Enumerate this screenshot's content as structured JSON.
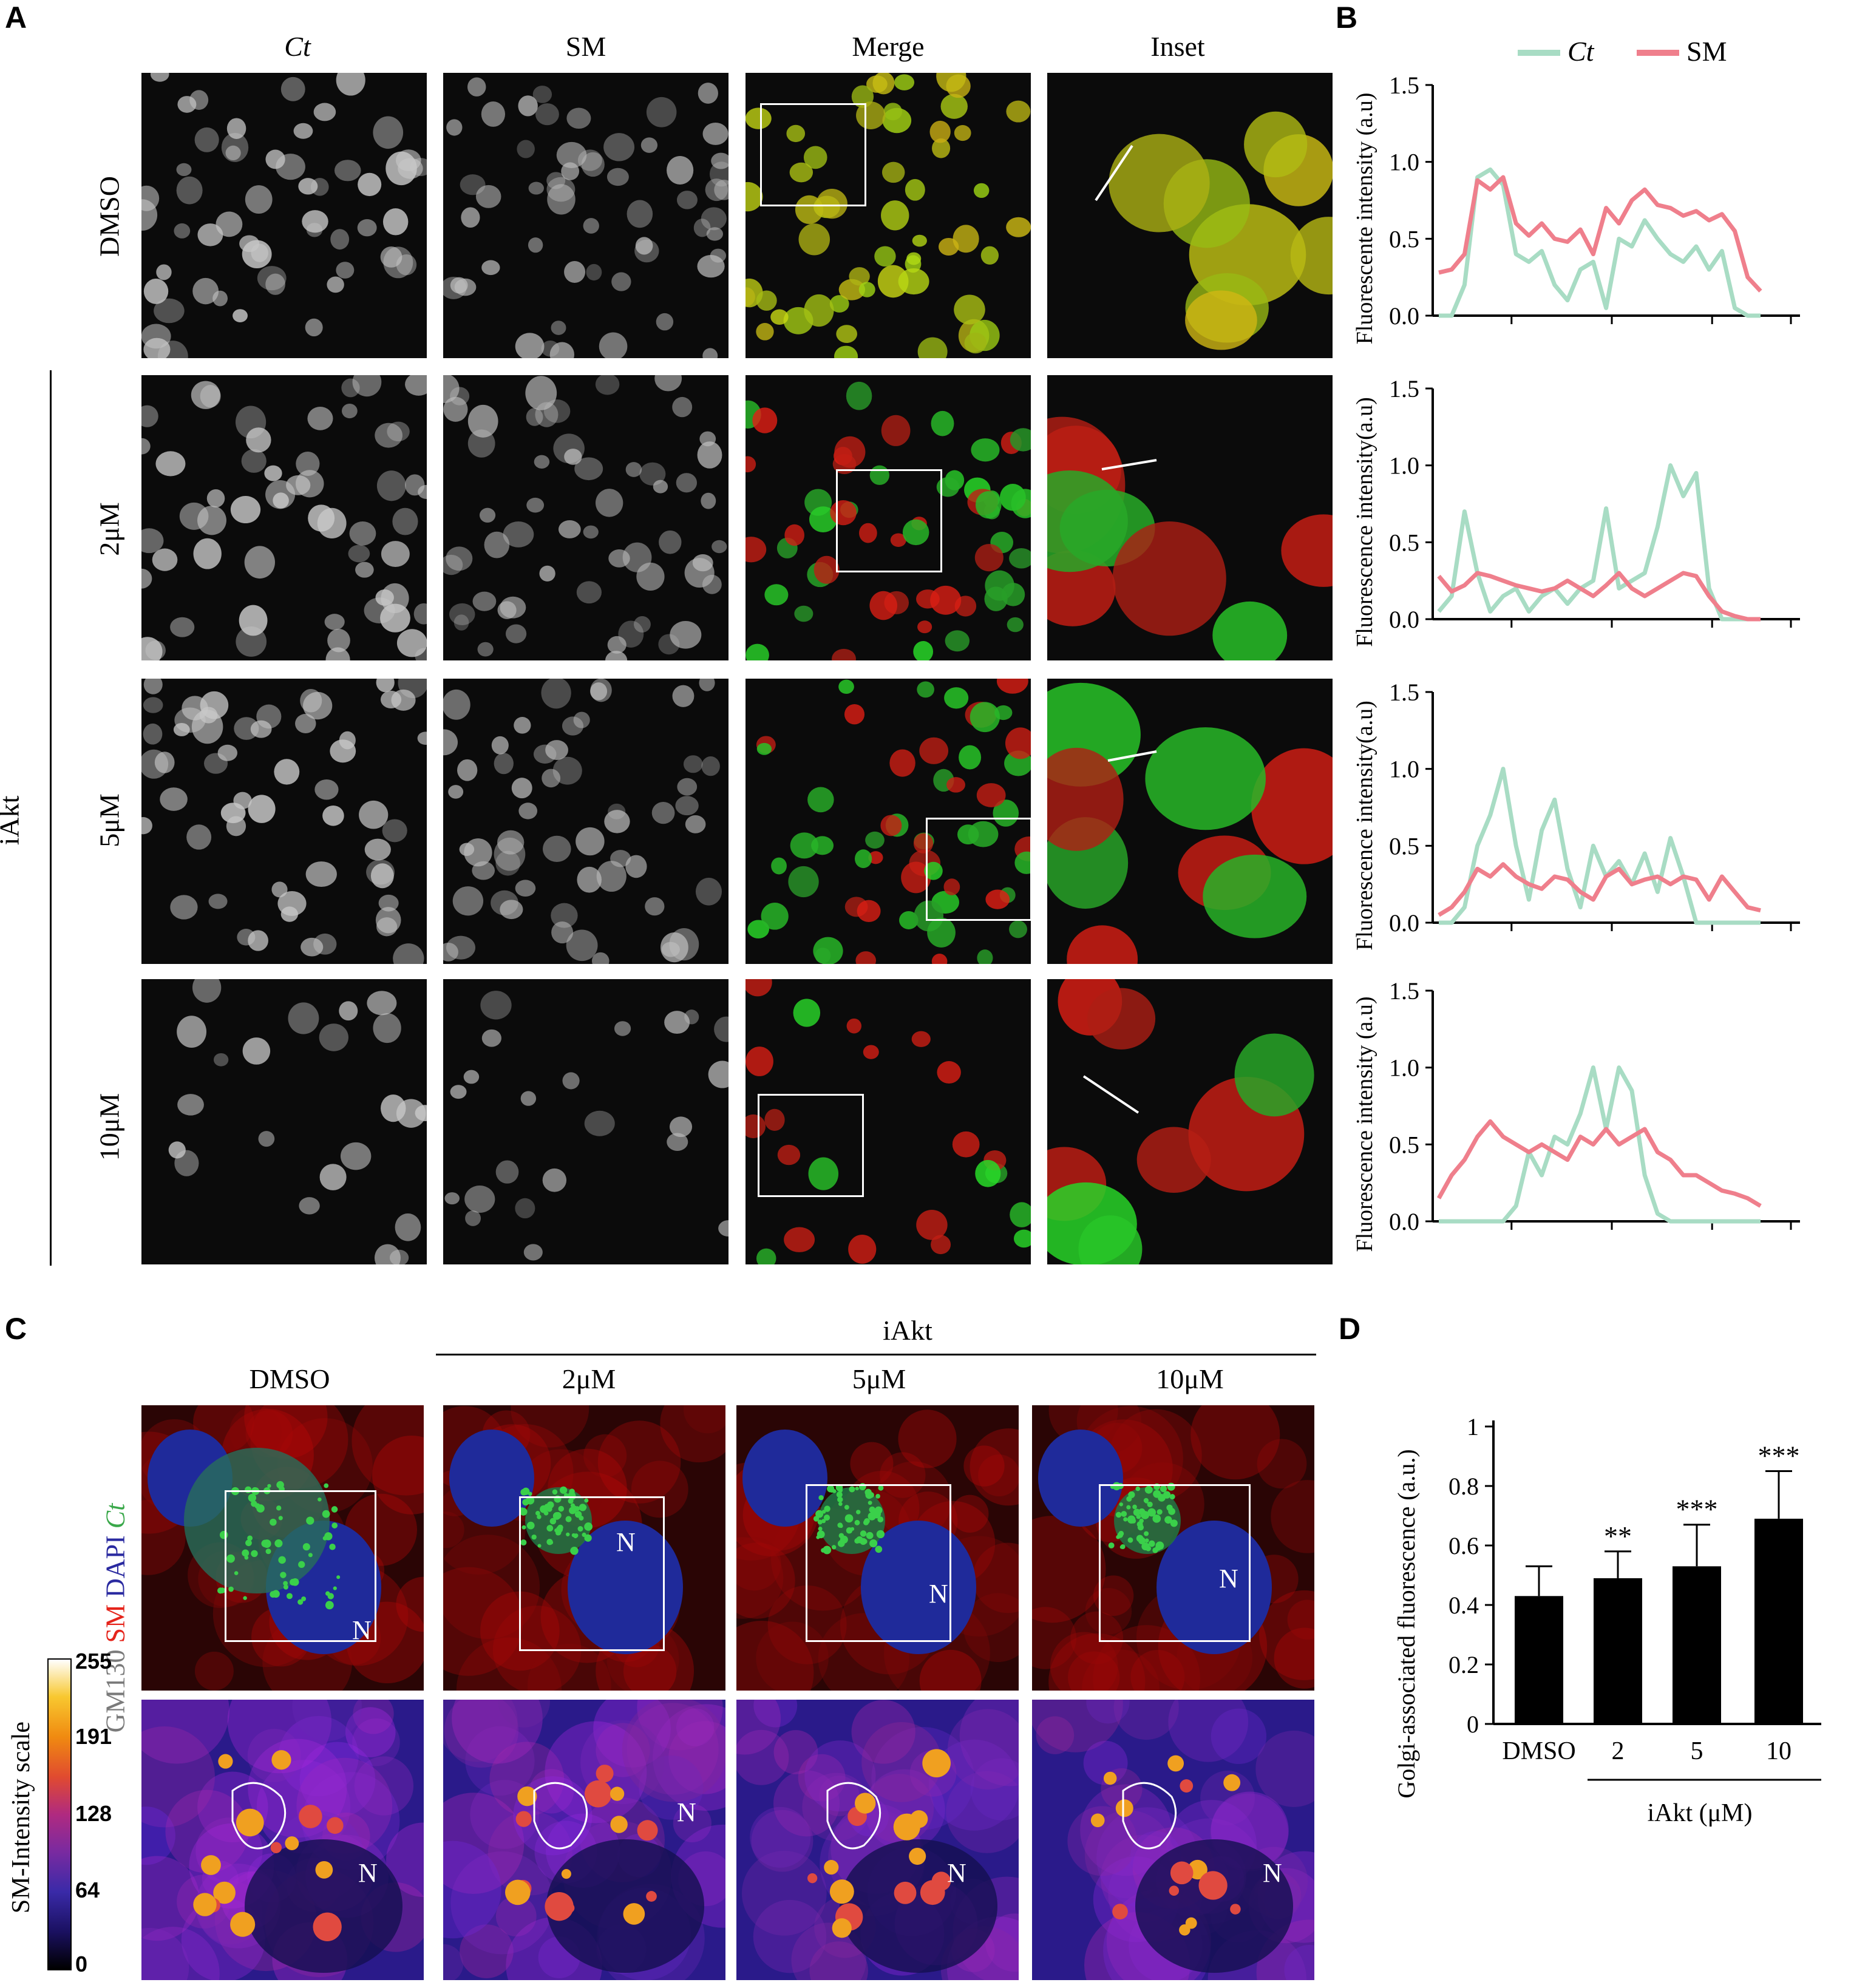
{
  "panelA": {
    "letter": "A",
    "columns": [
      "Ct",
      "SM",
      "Merge",
      "Inset"
    ],
    "rows": [
      "DMSO",
      "2μM",
      "5μM",
      "10μM"
    ],
    "group_label": "iAkt"
  },
  "panelB": {
    "letter": "B",
    "legend": [
      {
        "name": "Ct",
        "color": "#a8dcc4"
      },
      {
        "name": "SM",
        "color": "#ef7f8c"
      }
    ],
    "ylabels": [
      "Fluorescente intensity (a.u)",
      "Fluorescence intensity(a.u)",
      "Fluorescence intensity(a.u)",
      "Fluorescence intensity (a.u)"
    ],
    "yticks": [
      "0.0",
      "0.5",
      "1.0",
      "1.5"
    ]
  },
  "chart_data": [
    {
      "type": "line",
      "ylim": [
        0,
        1.5
      ],
      "ylabel": "Fluorescente intensity (a.u)",
      "x": [
        0,
        4,
        8,
        12,
        16,
        20,
        24,
        28,
        32,
        36,
        40,
        44,
        48,
        52,
        56,
        60,
        64,
        68,
        72,
        76,
        80,
        84,
        88,
        92,
        96,
        100
      ],
      "series": [
        {
          "name": "Ct",
          "values": [
            0,
            0,
            0.2,
            0.9,
            0.95,
            0.85,
            0.4,
            0.35,
            0.42,
            0.2,
            0.1,
            0.3,
            0.35,
            0.05,
            0.5,
            0.45,
            0.62,
            0.5,
            0.4,
            0.35,
            0.45,
            0.3,
            0.42,
            0.05,
            0,
            0
          ]
        },
        {
          "name": "SM",
          "values": [
            0.28,
            0.3,
            0.4,
            0.88,
            0.82,
            0.9,
            0.6,
            0.52,
            0.6,
            0.5,
            0.48,
            0.56,
            0.4,
            0.7,
            0.6,
            0.75,
            0.82,
            0.72,
            0.7,
            0.65,
            0.68,
            0.62,
            0.66,
            0.55,
            0.25,
            0.16
          ]
        }
      ]
    },
    {
      "type": "line",
      "ylim": [
        0,
        1.5
      ],
      "ylabel": "Fluorescence intensity(a.u)",
      "x": [
        0,
        4,
        8,
        12,
        16,
        20,
        24,
        28,
        32,
        36,
        40,
        44,
        48,
        52,
        56,
        60,
        64,
        68,
        72,
        76,
        80,
        84,
        88,
        92,
        96,
        100
      ],
      "series": [
        {
          "name": "Ct",
          "values": [
            0.05,
            0.15,
            0.7,
            0.3,
            0.05,
            0.15,
            0.2,
            0.05,
            0.15,
            0.2,
            0.1,
            0.2,
            0.25,
            0.72,
            0.2,
            0.25,
            0.3,
            0.6,
            1.0,
            0.8,
            0.95,
            0.2,
            0,
            0,
            0,
            0
          ]
        },
        {
          "name": "SM",
          "values": [
            0.28,
            0.18,
            0.22,
            0.3,
            0.28,
            0.25,
            0.22,
            0.2,
            0.18,
            0.2,
            0.25,
            0.2,
            0.15,
            0.22,
            0.3,
            0.2,
            0.15,
            0.2,
            0.25,
            0.3,
            0.28,
            0.15,
            0.05,
            0.02,
            0,
            0
          ]
        }
      ]
    },
    {
      "type": "line",
      "ylim": [
        0,
        1.5
      ],
      "ylabel": "Fluorescence intensity(a.u)",
      "x": [
        0,
        4,
        8,
        12,
        16,
        20,
        24,
        28,
        32,
        36,
        40,
        44,
        48,
        52,
        56,
        60,
        64,
        68,
        72,
        76,
        80,
        84,
        88,
        92,
        96,
        100
      ],
      "series": [
        {
          "name": "Ct",
          "values": [
            0,
            0,
            0.1,
            0.5,
            0.7,
            1.0,
            0.5,
            0.15,
            0.6,
            0.8,
            0.35,
            0.1,
            0.5,
            0.3,
            0.4,
            0.25,
            0.45,
            0.2,
            0.55,
            0.3,
            0.0,
            0,
            0,
            0,
            0,
            0
          ]
        },
        {
          "name": "SM",
          "values": [
            0.05,
            0.1,
            0.2,
            0.35,
            0.3,
            0.38,
            0.3,
            0.25,
            0.22,
            0.3,
            0.28,
            0.2,
            0.15,
            0.3,
            0.35,
            0.25,
            0.28,
            0.3,
            0.25,
            0.3,
            0.28,
            0.15,
            0.3,
            0.2,
            0.1,
            0.08
          ]
        }
      ]
    },
    {
      "type": "line",
      "ylim": [
        0,
        1.5
      ],
      "ylabel": "Fluorescence intensity (a.u)",
      "x": [
        0,
        4,
        8,
        12,
        16,
        20,
        24,
        28,
        32,
        36,
        40,
        44,
        48,
        52,
        56,
        60,
        64,
        68,
        72,
        76,
        80,
        84,
        88,
        92,
        96,
        100
      ],
      "series": [
        {
          "name": "Ct",
          "values": [
            0,
            0,
            0,
            0,
            0,
            0,
            0.1,
            0.45,
            0.3,
            0.55,
            0.5,
            0.7,
            1.0,
            0.6,
            1.0,
            0.85,
            0.3,
            0.05,
            0,
            0,
            0,
            0,
            0,
            0,
            0,
            0
          ]
        },
        {
          "name": "SM",
          "values": [
            0.15,
            0.3,
            0.4,
            0.55,
            0.65,
            0.55,
            0.5,
            0.45,
            0.5,
            0.45,
            0.4,
            0.55,
            0.5,
            0.6,
            0.5,
            0.55,
            0.6,
            0.45,
            0.4,
            0.3,
            0.3,
            0.25,
            0.2,
            0.18,
            0.15,
            0.1
          ]
        }
      ]
    },
    {
      "type": "bar",
      "ylim": [
        0,
        1
      ],
      "ylabel": "Golgi-associated fluorescence (a.u.)",
      "xlabel": "iAkt (μM)",
      "categories": [
        "DMSO",
        "2",
        "5",
        "10"
      ],
      "values": [
        0.43,
        0.49,
        0.53,
        0.69
      ],
      "errors": [
        0.1,
        0.09,
        0.14,
        0.16
      ],
      "significance": [
        "",
        "**",
        "***",
        "***"
      ],
      "yticks": [
        "0",
        "0.2",
        "0.4",
        "0.6",
        "0.8",
        "1"
      ]
    }
  ],
  "panelC": {
    "letter": "C",
    "group_label": "iAkt",
    "columns": [
      "DMSO",
      "2μM",
      "5μM",
      "10μM"
    ],
    "channel_labels": [
      {
        "text": "GM130",
        "color": "#7a7a7a"
      },
      {
        "text": "SM",
        "color": "#e5241b"
      },
      {
        "text": "DAPI",
        "color": "#2a2aa0"
      },
      {
        "text": "Ct",
        "color": "#3aa84a"
      }
    ],
    "nucleus_label": "N",
    "scale_title": "SM-Intensity scale",
    "scale_ticks": [
      "255",
      "191",
      "128",
      "64",
      "0"
    ]
  },
  "panelD": {
    "letter": "D"
  }
}
